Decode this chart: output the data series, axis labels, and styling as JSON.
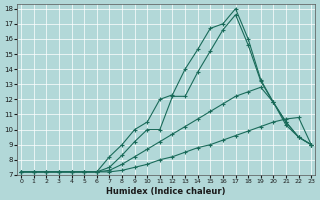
{
  "xlabel": "Humidex (Indice chaleur)",
  "bg_color": "#b2d8d8",
  "grid_color": "#ffffff",
  "line_color": "#1a6b5a",
  "xlim": [
    -0.3,
    23.3
  ],
  "ylim": [
    7.0,
    18.3
  ],
  "xticks": [
    0,
    1,
    2,
    3,
    4,
    5,
    6,
    7,
    8,
    9,
    10,
    11,
    12,
    13,
    14,
    15,
    16,
    17,
    18,
    19,
    20,
    21,
    22,
    23
  ],
  "yticks": [
    7,
    8,
    9,
    10,
    11,
    12,
    13,
    14,
    15,
    16,
    17,
    18
  ],
  "line1_x": [
    0,
    1,
    2,
    3,
    4,
    5,
    6,
    7,
    8,
    9,
    10,
    11,
    12,
    13,
    14,
    15,
    16,
    17,
    18,
    19,
    20,
    21,
    22,
    23
  ],
  "line1_y": [
    7.2,
    7.2,
    7.2,
    7.2,
    7.2,
    7.2,
    7.2,
    7.2,
    7.3,
    7.5,
    7.7,
    8.0,
    8.2,
    8.5,
    8.8,
    9.0,
    9.3,
    9.6,
    9.9,
    10.2,
    10.5,
    10.7,
    10.8,
    9.0
  ],
  "line2_x": [
    0,
    1,
    2,
    3,
    4,
    5,
    6,
    7,
    8,
    9,
    10,
    11,
    12,
    13,
    14,
    15,
    16,
    17,
    18,
    19,
    20,
    21,
    22,
    23
  ],
  "line2_y": [
    7.2,
    7.2,
    7.2,
    7.2,
    7.2,
    7.2,
    7.2,
    7.3,
    7.7,
    8.2,
    8.7,
    9.2,
    9.7,
    10.2,
    10.7,
    11.2,
    11.7,
    12.2,
    12.5,
    12.8,
    11.8,
    10.5,
    9.5,
    9.0
  ],
  "line3_x": [
    0,
    1,
    2,
    3,
    4,
    5,
    6,
    7,
    8,
    9,
    10,
    11,
    12,
    13,
    14,
    15,
    16,
    17,
    18,
    19,
    20,
    21,
    22,
    23
  ],
  "line3_y": [
    7.2,
    7.2,
    7.2,
    7.2,
    7.2,
    7.2,
    7.2,
    7.5,
    8.3,
    9.2,
    10.0,
    10.0,
    12.2,
    12.2,
    13.8,
    15.2,
    16.6,
    17.6,
    15.6,
    13.2,
    11.8,
    10.5,
    9.5,
    9.0
  ],
  "line4_x": [
    0,
    1,
    2,
    3,
    4,
    5,
    6,
    7,
    8,
    9,
    10,
    11,
    12,
    13,
    14,
    15,
    16,
    17,
    18,
    19,
    20,
    21,
    22,
    23
  ],
  "line4_y": [
    7.2,
    7.2,
    7.2,
    7.2,
    7.2,
    7.2,
    7.2,
    8.2,
    9.0,
    10.0,
    10.5,
    12.0,
    12.3,
    14.0,
    15.3,
    16.7,
    17.0,
    18.0,
    16.0,
    13.3,
    11.8,
    10.3,
    9.5,
    9.0
  ]
}
